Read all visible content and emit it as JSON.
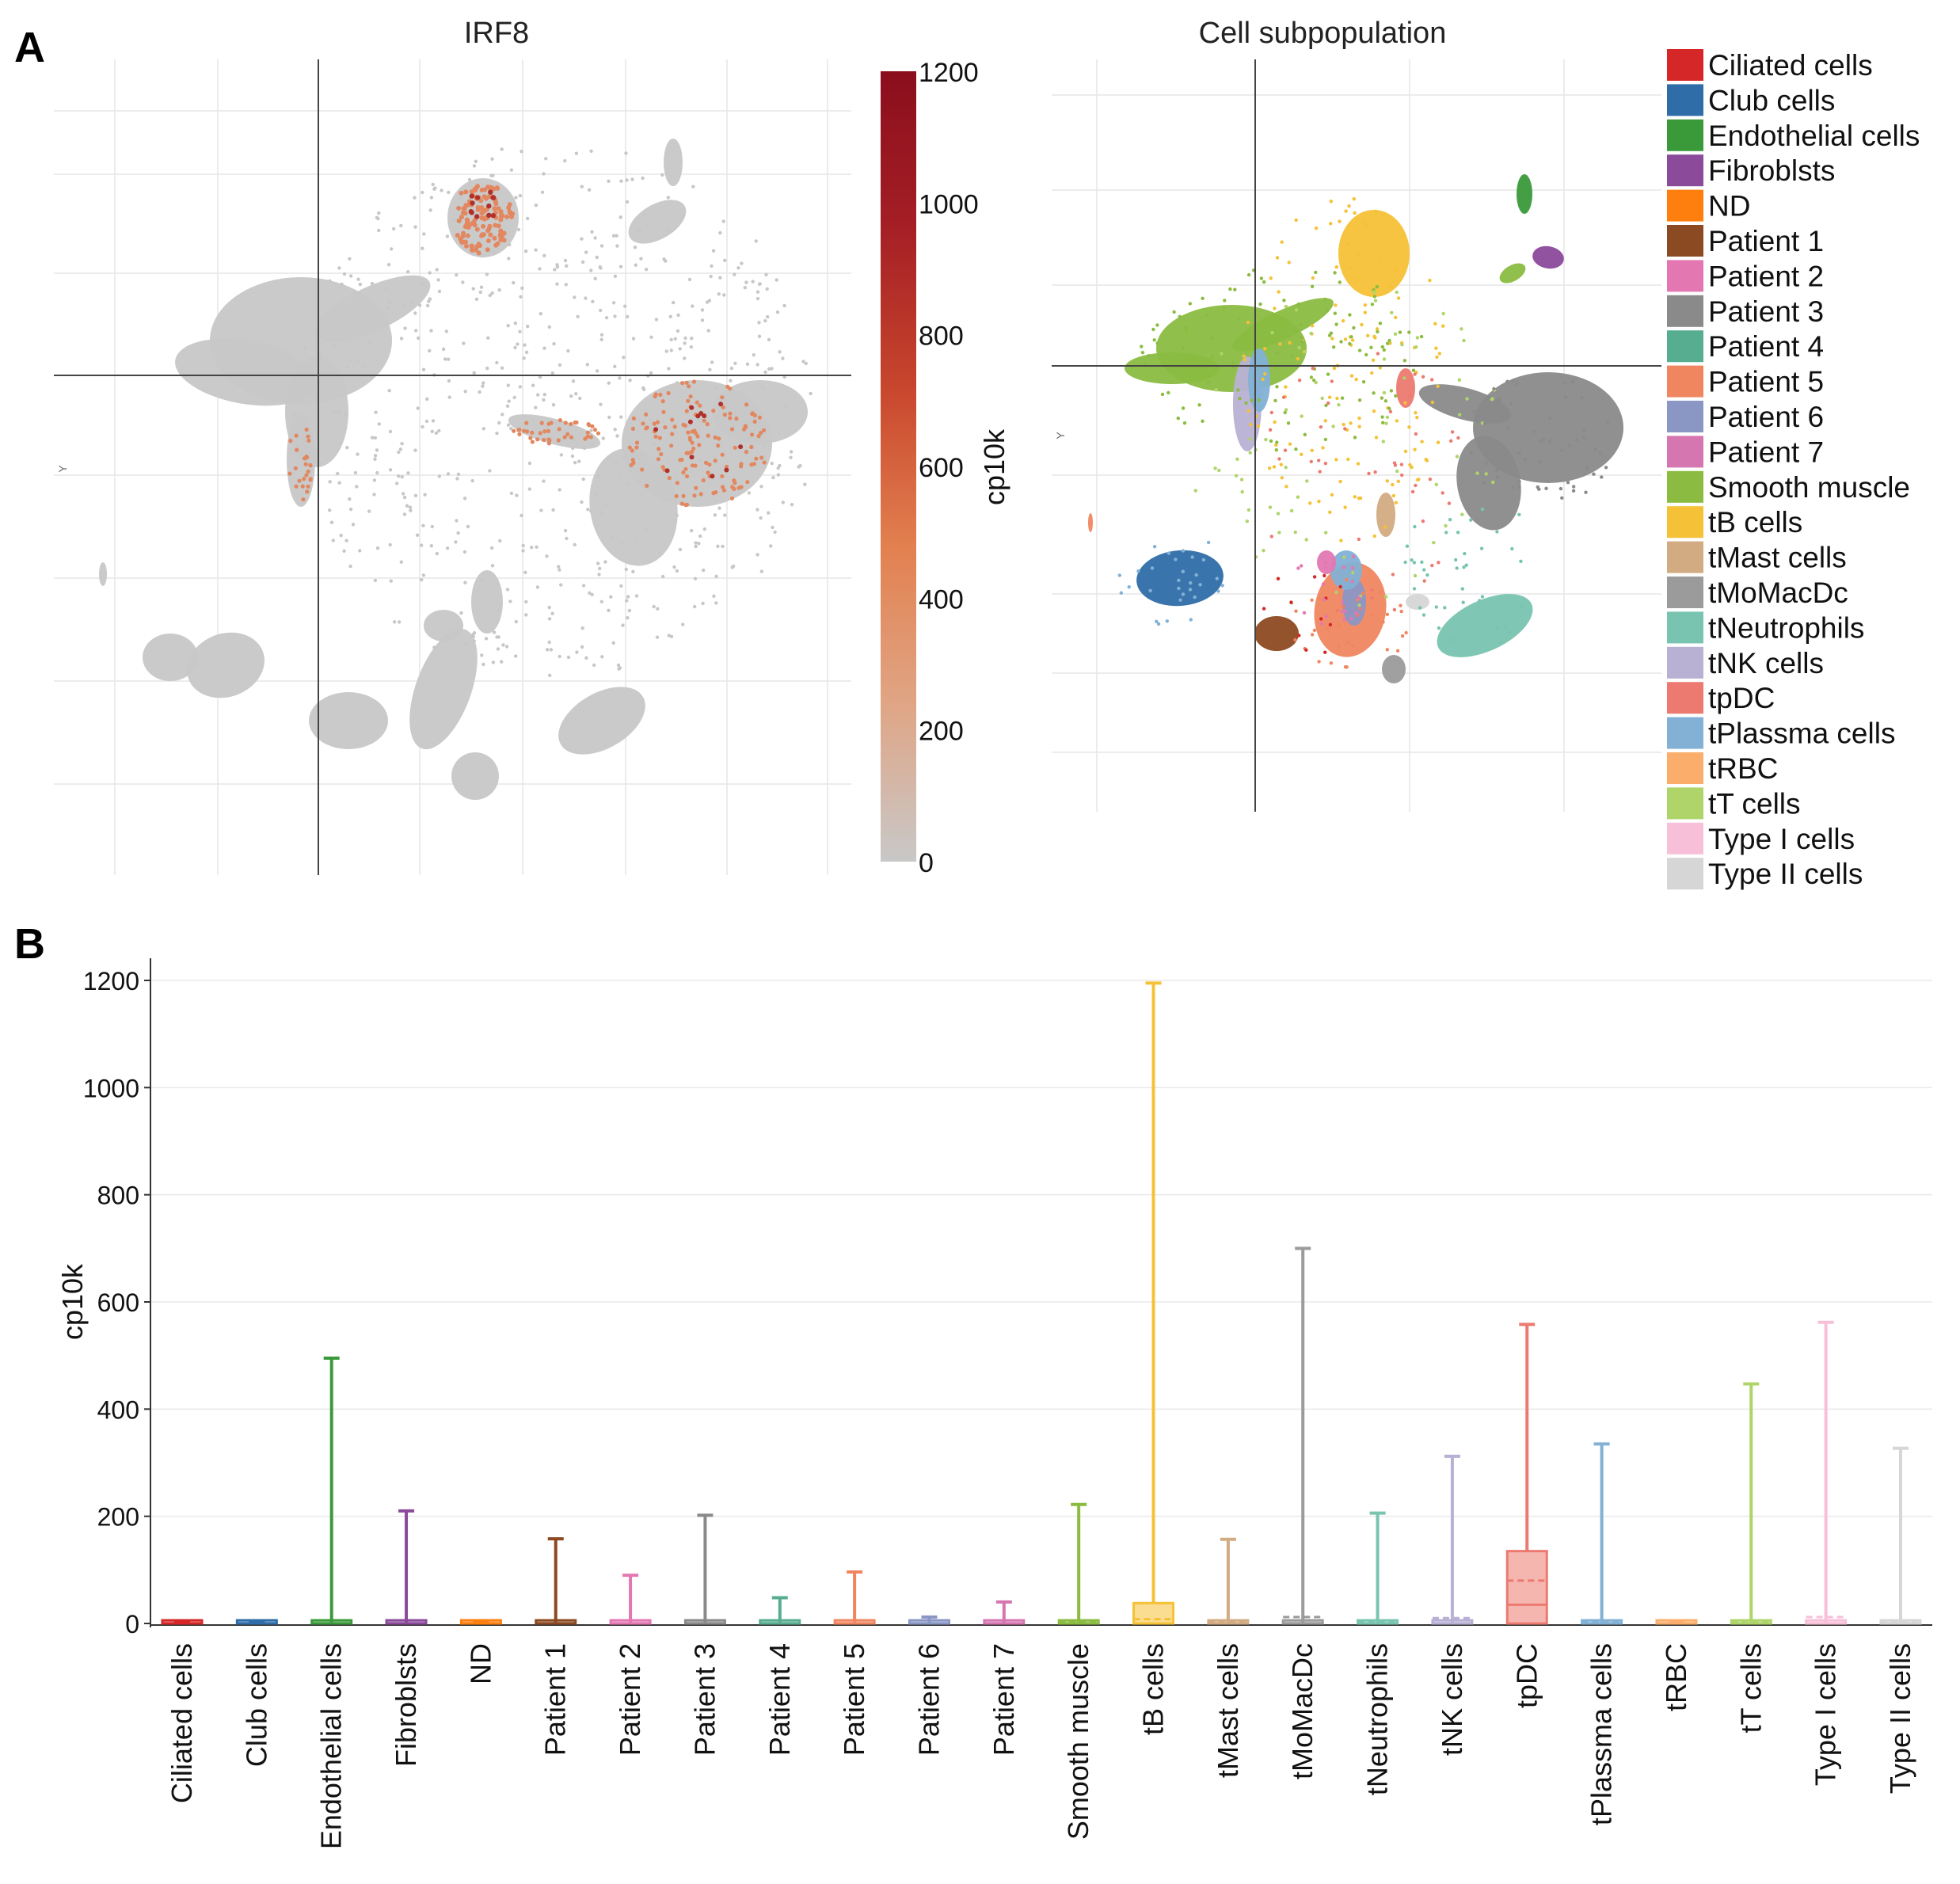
{
  "panels": {
    "a_label": "A",
    "b_label": "B"
  },
  "chart_data": [
    {
      "id": "umap_irf8",
      "type": "scatter",
      "title": "IRF8",
      "ylabel": "Y",
      "colorbar": {
        "label": "cp10k",
        "range": [
          0,
          1200
        ],
        "ticks": [
          "0",
          "200",
          "400",
          "600",
          "800",
          "1000",
          "1200"
        ],
        "colors": [
          "#c8c8c8",
          "#e0a585",
          "#e2804f",
          "#c8462d",
          "#a51f25",
          "#8b0e1d"
        ]
      },
      "points_color": "#c7c7c7",
      "highlight_color": "#e2875f"
    },
    {
      "id": "umap_subpopulation",
      "type": "scatter",
      "title": "Cell subpopulation",
      "ylabel": "Y",
      "legend": [
        {
          "label": "Ciliated cells",
          "color": "#d62728"
        },
        {
          "label": "Club cells",
          "color": "#2f6da8"
        },
        {
          "label": "Endothelial cells",
          "color": "#3a9a3a"
        },
        {
          "label": "Fibroblsts",
          "color": "#8b4a9a"
        },
        {
          "label": "ND",
          "color": "#ff7f0e"
        },
        {
          "label": "Patient 1",
          "color": "#8c4a22"
        },
        {
          "label": "Patient 2",
          "color": "#e377b2"
        },
        {
          "label": "Patient 3",
          "color": "#8a8a8a"
        },
        {
          "label": "Patient 4",
          "color": "#57ad8f"
        },
        {
          "label": "Patient 5",
          "color": "#f08660"
        },
        {
          "label": "Patient 6",
          "color": "#8a97c4"
        },
        {
          "label": "Patient 7",
          "color": "#d676b0"
        },
        {
          "label": "Smooth muscle",
          "color": "#8bbc41"
        },
        {
          "label": "tB cells",
          "color": "#f5c136"
        },
        {
          "label": "tMast cells",
          "color": "#d2ab82"
        },
        {
          "label": "tMoMacDc",
          "color": "#9b9b9b"
        },
        {
          "label": "tNeutrophils",
          "color": "#78c4b0"
        },
        {
          "label": "tNK cells",
          "color": "#b9b1d4"
        },
        {
          "label": "tpDC",
          "color": "#ec7a70"
        },
        {
          "label": "tPlassma cells",
          "color": "#82b1d5"
        },
        {
          "label": "tRBC",
          "color": "#fbae6b"
        },
        {
          "label": "tT cells",
          "color": "#afd46a"
        },
        {
          "label": "Type I cells",
          "color": "#f8bfd8"
        },
        {
          "label": "Type II cells",
          "color": "#d6d6d6"
        }
      ]
    },
    {
      "id": "boxplot_irf8",
      "type": "box",
      "ylabel": "cp10k",
      "ylim": [
        0,
        1200
      ],
      "yticks": [
        "0",
        "200",
        "400",
        "600",
        "800",
        "1000",
        "1200"
      ],
      "categories": [
        "Ciliated cells",
        "Club cells",
        "Endothelial cells",
        "Fibroblsts",
        "ND",
        "Patient 1",
        "Patient 2",
        "Patient 3",
        "Patient 4",
        "Patient 5",
        "Patient 6",
        "Patient 7",
        "Smooth muscle",
        "tB cells",
        "tMast cells",
        "tMoMacDc",
        "tNeutrophils",
        "tNK cells",
        "tpDC",
        "tPlassma cells",
        "tRBC",
        "tT cells",
        "Type I cells",
        "Type II cells"
      ],
      "max": [
        3,
        3,
        495,
        210,
        3,
        158,
        90,
        202,
        48,
        96,
        12,
        40,
        222,
        1195,
        157,
        700,
        206,
        312,
        558,
        335,
        3,
        447,
        562,
        327
      ],
      "q3": [
        0,
        0,
        0,
        0,
        0,
        0,
        0,
        0,
        0,
        0,
        0,
        0,
        0,
        38,
        0,
        0,
        0,
        0,
        135,
        0,
        0,
        0,
        0,
        0
      ],
      "median": [
        0,
        0,
        0,
        0,
        0,
        0,
        0,
        0,
        0,
        0,
        0,
        0,
        0,
        0,
        0,
        0,
        0,
        0,
        35,
        0,
        0,
        0,
        0,
        0
      ],
      "mean": [
        0,
        0,
        0,
        0,
        0,
        0,
        0,
        0,
        0,
        0,
        0,
        0,
        2,
        8,
        2,
        12,
        2,
        10,
        80,
        2,
        0,
        2,
        12,
        2
      ],
      "colors": [
        "#d62728",
        "#2f6da8",
        "#3a9a3a",
        "#8b4a9a",
        "#ff7f0e",
        "#8c4a22",
        "#e377b2",
        "#8a8a8a",
        "#57ad8f",
        "#f08660",
        "#8a97c4",
        "#d676b0",
        "#8bbc41",
        "#f5c136",
        "#d2ab82",
        "#9b9b9b",
        "#78c4b0",
        "#b9b1d4",
        "#ec7a70",
        "#82b1d5",
        "#fbae6b",
        "#afd46a",
        "#f8bfd8",
        "#d6d6d6"
      ]
    }
  ]
}
